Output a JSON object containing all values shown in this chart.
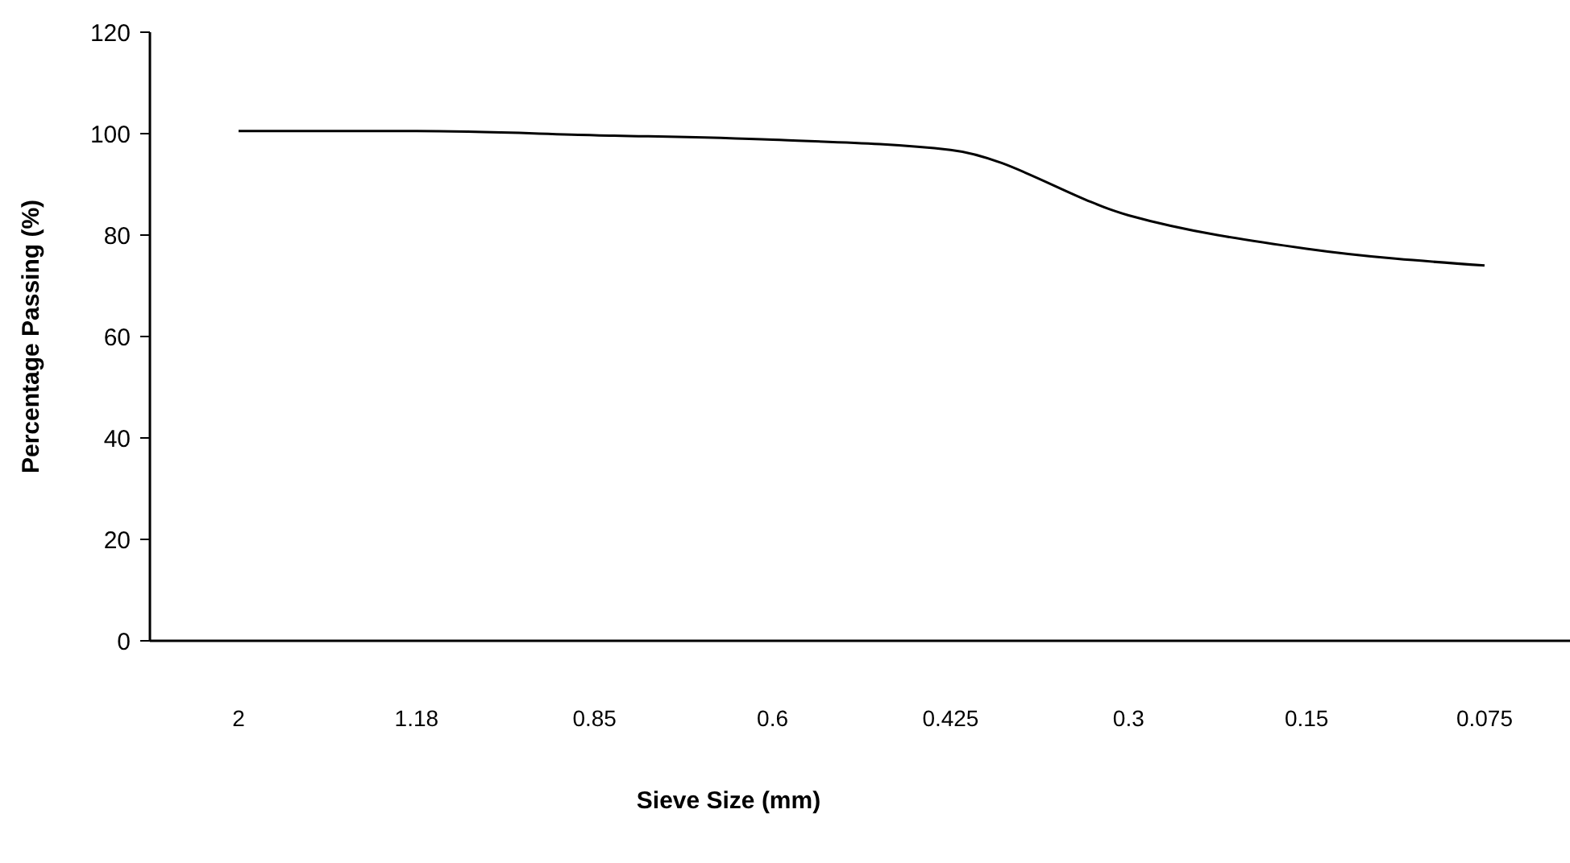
{
  "chart_data": {
    "type": "line",
    "xlabel": "Sieve Size (mm)",
    "ylabel": "Percentage Passing  (%)",
    "categories": [
      "2",
      "1.18",
      "0.85",
      "0.6",
      "0.425",
      "0.3",
      "0.15",
      "0.075"
    ],
    "series": [
      {
        "color": "#000000",
        "values": [
          100.5,
          100.5,
          99.7,
          98.8,
          96.8,
          83.9,
          77.3,
          74
        ]
      }
    ],
    "ylim": [
      0,
      120
    ],
    "yticks": [
      0,
      20,
      40,
      60,
      80,
      100,
      120
    ],
    "grid": false,
    "marker": "none",
    "line_style": "solid"
  }
}
